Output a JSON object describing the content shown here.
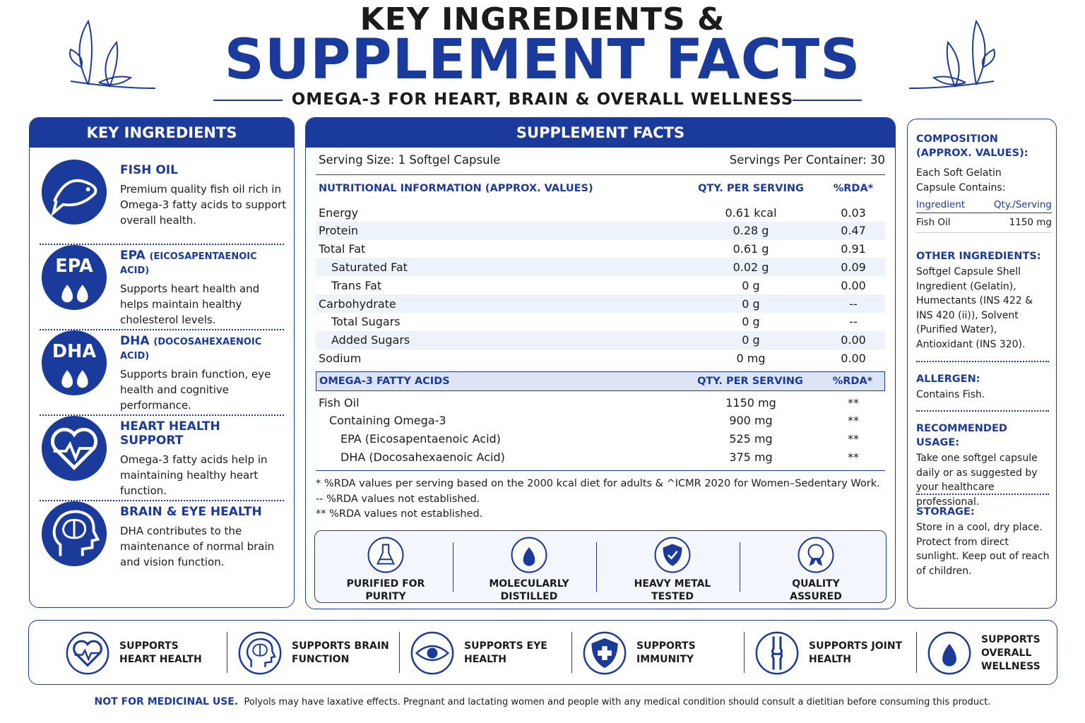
{
  "header": {
    "line1": "KEY INGREDIENTS &",
    "line2": "SUPPLEMENT FACTS",
    "subtitle": "OMEGA-3 FOR HEART, BRAIN & OVERALL WELLNESS"
  },
  "key_ingredients": {
    "title": "KEY INGREDIENTS",
    "items": [
      {
        "title": "FISH OIL",
        "text": "Premium quality fish oil rich in Omega-3 fatty acids to support overall health."
      },
      {
        "icon_label": "EPA",
        "title": "EPA",
        "subtitle": "(EICOSAPENTAENOIC ACID)",
        "text": "Supports heart health and helps maintain healthy cholesterol levels."
      },
      {
        "icon_label": "DHA",
        "title": "DHA",
        "subtitle": "(DOCOSAHEXAENOIC ACID)",
        "text": "Supports brain function, eye health and cognitive performance."
      },
      {
        "title": "HEART HEALTH SUPPORT",
        "text": "Omega-3 fatty acids help in maintaining healthy heart function."
      },
      {
        "title": "BRAIN & EYE HEALTH",
        "text": "DHA contributes to the maintenance of normal brain and vision function."
      }
    ]
  },
  "supplement_facts": {
    "title": "SUPPLEMENT FACTS",
    "serving_size": "Serving Size: 1 Softgel Capsule",
    "servings_per_container": "Servings Per Container: 30",
    "nutrition_header": [
      "NUTRITIONAL INFORMATION (APPROX. VALUES)",
      "QTY. PER SERVING",
      "%RDA*"
    ],
    "nutrition_rows": [
      [
        "Energy",
        "0.61 kcal",
        "0.03"
      ],
      [
        "Protein",
        "0.28 g",
        "0.47"
      ],
      [
        "Total Fat",
        "0.61 g",
        "0.91"
      ],
      [
        "Saturated Fat",
        "0.02 g",
        "0.09"
      ],
      [
        "Trans Fat",
        "0 g",
        "0.00"
      ],
      [
        "Carbohydrate",
        "0 g",
        "--"
      ],
      [
        "Total Sugars",
        "0 g",
        "--"
      ],
      [
        "Added Sugars",
        "0 g",
        "0.00"
      ],
      [
        "Sodium",
        "0 mg",
        "0.00"
      ]
    ],
    "omega_header": [
      "OMEGA-3 FATTY ACIDS",
      "QTY. PER SERVING",
      "%RDA*"
    ],
    "omega_rows": [
      [
        "Fish Oil",
        "1150 mg",
        "**"
      ],
      [
        "Containing Omega-3",
        "900 mg",
        "**"
      ],
      [
        "EPA (Eicosapentaenoic Acid)",
        "525 mg",
        "**"
      ],
      [
        "DHA (Docosahexaenoic Acid)",
        "375 mg",
        "**"
      ]
    ],
    "notes": [
      "* %RDA values per serving based on the 2000 kcal diet for adults &  ^ICMR 2020 for Women–Sedentary Work.",
      "-- %RDA values not established.",
      "** %RDA values not established."
    ],
    "badges": [
      "PURIFIED FOR PURITY",
      "MOLECULARLY DISTILLED",
      "HEAVY METAL TESTED",
      "QUALITY ASSURED"
    ]
  },
  "composition": {
    "title": "COMPOSITION (APPROX. VALUES):",
    "text": "Each Soft Gelatin Capsule Contains:",
    "table_header": [
      "Ingredient",
      "Qty./Serving"
    ],
    "table_row": [
      "Fish Oil",
      "1150 mg"
    ],
    "sections": [
      {
        "title": "OTHER INGREDIENTS:",
        "text": "Softgel Capsule Shell Ingredient (Gelatin), Humectants (INS 422 & INS 420 (ii)), Solvent (Purified Water), Antioxidant (INS 320)."
      },
      {
        "title": "ALLERGEN:",
        "text": "Contains Fish."
      },
      {
        "title": "RECOMMENDED USAGE:",
        "text": "Take one softgel capsule daily or as suggested by your healthcare professional."
      },
      {
        "title": "STORAGE:",
        "text": "Store in a cool, dry place. Protect from direct sunlight. Keep out of reach of children."
      }
    ]
  },
  "benefits": [
    "SUPPORTS HEART HEALTH",
    "SUPPORTS BRAIN FUNCTION",
    "SUPPORTS EYE HEALTH",
    "SUPPORTS IMMUNITY",
    "SUPPORTS JOINT HEALTH",
    "SUPPORTS OVERALL WELLNESS"
  ],
  "footer": {
    "bold": "NOT FOR MEDICINAL USE.",
    "text": "Polyols may have laxative effects. Pregnant and lactating women and people with any medical condition should consult a dietitian before consuming this product."
  }
}
